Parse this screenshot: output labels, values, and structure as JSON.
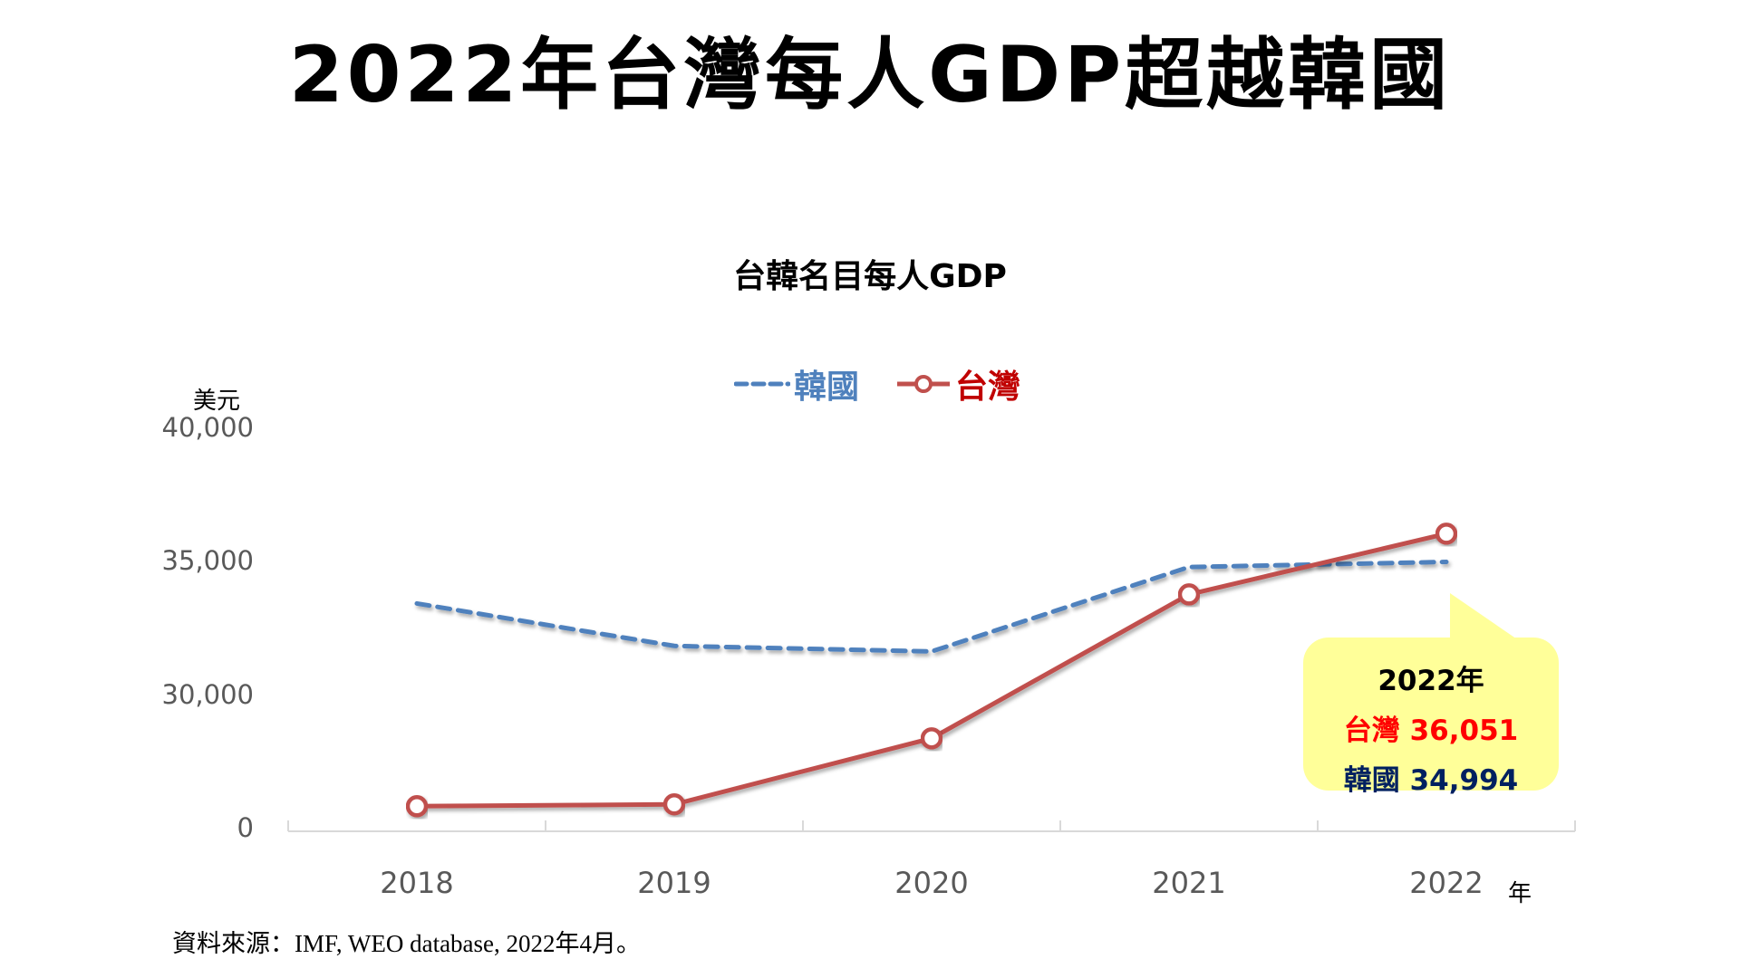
{
  "page": {
    "main_title": "2022年台灣每人GDP超越韓國",
    "source_note": "資料來源：IMF, WEO database, 2022年4月。"
  },
  "callout": {
    "year": "2022年",
    "taiwan_label": "台灣",
    "taiwan_value": "36,051",
    "korea_label": "韓國",
    "korea_value": "34,994",
    "background": "#FFFF99",
    "taiwan_color": "#FF0000",
    "korea_color": "#002060"
  },
  "chart_data": {
    "type": "line",
    "title": "台韓名目每人GDP",
    "xlabel": "年",
    "ylabel": "美元",
    "categories": [
      "2018",
      "2019",
      "2020",
      "2021",
      "2022"
    ],
    "series": [
      {
        "name": "韓國",
        "values": [
          33436,
          31846,
          31638,
          34801,
          34994
        ],
        "color": "#4F81BD",
        "line_style": "dashed",
        "marker": "none",
        "legend_color": "#4F81BD"
      },
      {
        "name": "台灣",
        "values": [
          25838,
          25908,
          28383,
          33775,
          36051
        ],
        "color": "#C0504D",
        "line_style": "solid",
        "marker": "open-circle",
        "legend_color": "#C00000"
      }
    ],
    "y_ticks": [
      {
        "label": "40,000",
        "value": 40000
      },
      {
        "label": "35,000",
        "value": 35000
      },
      {
        "label": "30,000",
        "value": 30000
      },
      {
        "label": "0",
        "value": 25000
      }
    ],
    "ylim": [
      25000,
      40000
    ],
    "axis_break": "y-axis broken between 0 and 30,000",
    "grid": false,
    "legend_position": "top-center"
  }
}
